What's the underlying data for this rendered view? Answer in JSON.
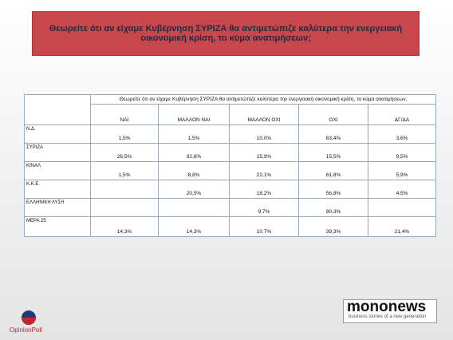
{
  "title": "Θεωρείτε ότι αν είχαμε Κυβέρνηση ΣΥΡΙΖΑ θα αντιμετώπιζε καλύτερα την ενεργειακή οικονομική κρίση, το κύμα ανατιμήσεων;",
  "table": {
    "question": "Θεωρείτε ότι αν είχαμε Κυβέρνηση ΣΥΡΙΖΑ θα αντιμετώπιζε καλύτερα την ενεργειακή οικονομική κρίση, το κύμα ανατιμήσεων;",
    "columns": [
      "ΝΑΙ",
      "ΜΑΛΛΟΝ ΝΑΙ",
      "ΜΑΛΛΟΝ ΟΧΙ",
      "ΟΧΙ",
      "ΔΓ/ΔΑ"
    ],
    "rows": [
      {
        "label": "Ν.Δ.",
        "cells": [
          "1,5%",
          "1,5%",
          "10,0%",
          "83,4%",
          "3,6%"
        ]
      },
      {
        "label": "ΣΥΡΙΖΑ",
        "cells": [
          "26,5%",
          "32,6%",
          "15,9%",
          "15,5%",
          "9,5%"
        ]
      },
      {
        "label": "ΚΙΝΑΛ",
        "cells": [
          "1,5%",
          "8,8%",
          "22,1%",
          "61,8%",
          "5,9%"
        ]
      },
      {
        "label": "Κ.Κ.Ε.",
        "cells": [
          null,
          "20,5%",
          "18,2%",
          "56,8%",
          "4,5%"
        ]
      },
      {
        "label": "ΕΛΛΗΝΙΚΗ ΛΥΣΗ",
        "cells": [
          null,
          null,
          "9,7%",
          "90,3%",
          null
        ]
      },
      {
        "label": "ΜΕΡΑ 25",
        "cells": [
          "14,3%",
          "14,3%",
          "10,7%",
          "39,3%",
          "21,4%"
        ]
      }
    ]
  },
  "logos": {
    "opinionpoll": "OpinionPoll",
    "mononews": "mononews",
    "tagline": "business stories of a new generation"
  }
}
